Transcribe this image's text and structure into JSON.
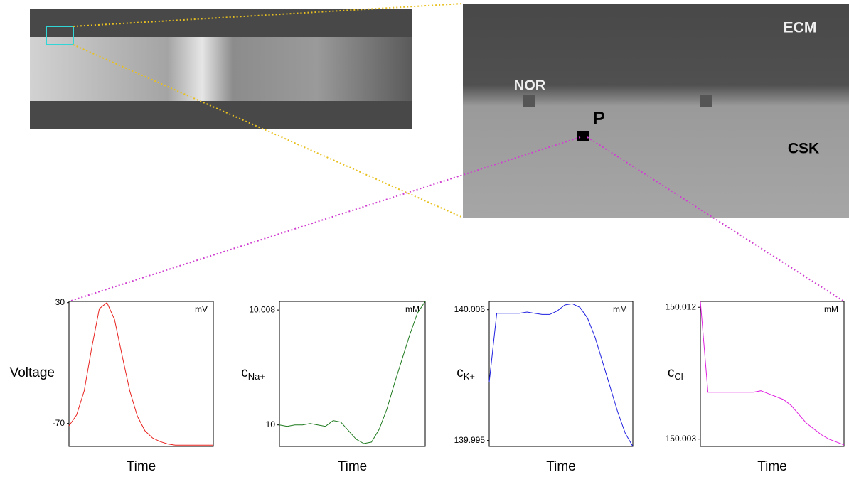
{
  "figure_labels": {
    "ecm": "ECM",
    "nor": "NOR",
    "csk": "CSK",
    "point": "P"
  },
  "chart_data": [
    {
      "type": "line",
      "y_label": "Voltage",
      "unit": "mV",
      "x_label": "Time",
      "ylim": [
        -89,
        31
      ],
      "yticks": [
        30,
        -70
      ],
      "series": [
        {
          "color": "#e8231f",
          "values": [
            -72,
            -63,
            -43,
            -7,
            25,
            30,
            16,
            -14,
            -43,
            -64,
            -76,
            -82,
            -85,
            -87,
            -88,
            -88,
            -88,
            -88,
            -88,
            -88
          ]
        }
      ]
    },
    {
      "type": "line",
      "y_label": "c",
      "y_label_sub": "Na+",
      "unit": "mM",
      "x_label": "Time",
      "ylim": [
        9.9985,
        10.0086
      ],
      "yticks": [
        10.008,
        10
      ],
      "series": [
        {
          "color": "#1e7a1e",
          "values": [
            10.0,
            9.9999,
            10.0,
            10.0,
            10.0001,
            10.0,
            9.9999,
            10.0003,
            10.0002,
            9.9996,
            9.999,
            9.9987,
            9.9988,
            9.9997,
            10.0011,
            10.0029,
            10.0046,
            10.0063,
            10.0078,
            10.0086
          ]
        }
      ]
    },
    {
      "type": "line",
      "y_label": "c",
      "y_label_sub": "K+",
      "unit": "mM",
      "x_label": "Time",
      "ylim": [
        139.9945,
        140.0067
      ],
      "yticks": [
        140.006,
        139.995
      ],
      "series": [
        {
          "color": "#1f1fe0",
          "values": [
            139.9999,
            140.0057,
            140.0057,
            140.0057,
            140.0057,
            140.0058,
            140.0057,
            140.0056,
            140.0056,
            140.0059,
            140.0064,
            140.0065,
            140.0062,
            140.0053,
            140.0037,
            140.0016,
            139.9995,
            139.9974,
            139.9956,
            139.9945
          ]
        }
      ]
    },
    {
      "type": "line",
      "y_label": "c",
      "y_label_sub": "Cl-",
      "unit": "mM",
      "x_label": "Time",
      "ylim": [
        150.0025,
        150.0124
      ],
      "yticks": [
        150.012,
        150.003
      ],
      "series": [
        {
          "color": "#e020e0",
          "values": [
            150.0124,
            150.0062,
            150.0062,
            150.0062,
            150.0062,
            150.0062,
            150.0062,
            150.0062,
            150.0063,
            150.0061,
            150.0059,
            150.0057,
            150.0053,
            150.0047,
            150.0041,
            150.0037,
            150.0033,
            150.003,
            150.0028,
            150.0026
          ]
        }
      ]
    }
  ]
}
